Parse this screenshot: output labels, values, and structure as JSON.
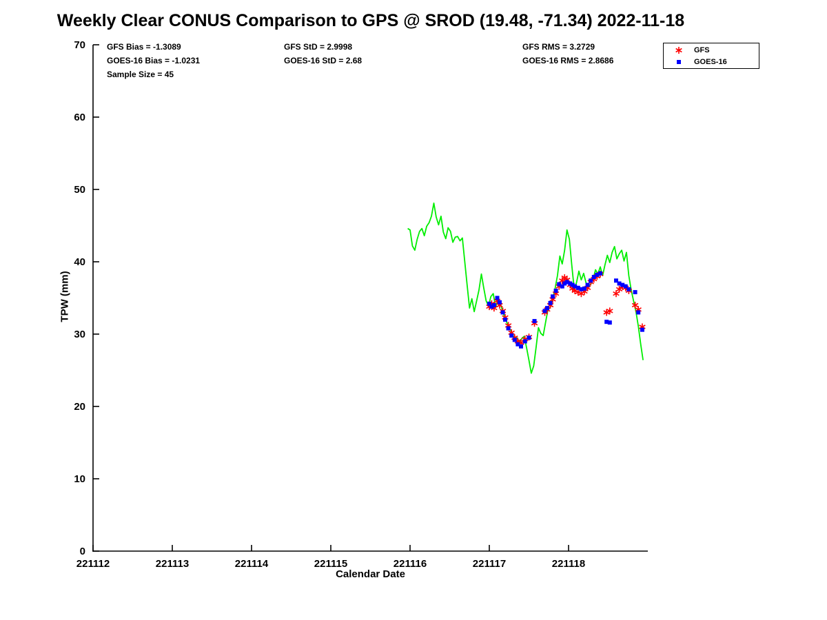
{
  "title": "Weekly Clear CONUS Comparison to GPS @ SROD (19.48, -71.34) 2022-11-18",
  "stats": {
    "gfs_bias": "GFS Bias = -1.3089",
    "goes_bias": "GOES-16 Bias = -1.0231",
    "sample_size": "Sample Size = 45",
    "gfs_std": "GFS StD = 2.9998",
    "goes_std": "GOES-16 StD = 2.68",
    "gfs_rms": "GFS RMS = 3.2729",
    "goes_rms": "GOES-16 RMS = 2.8686"
  },
  "legend": {
    "items": [
      {
        "label": "GFS",
        "marker": "asterisk",
        "color": "#ff0000"
      },
      {
        "label": "GOES-16",
        "marker": "square",
        "color": "#0000ff"
      }
    ]
  },
  "chart_data": {
    "type": "line+scatter",
    "title": "Weekly Clear CONUS Comparison to GPS @ SROD (19.48, -71.34) 2022-11-18",
    "xlabel": "Calendar Date",
    "ylabel": "TPW (mm)",
    "xlim": [
      221112,
      221119
    ],
    "ylim": [
      0,
      70
    ],
    "xticks": [
      221112,
      221113,
      221114,
      221115,
      221116,
      221117,
      221118
    ],
    "yticks": [
      0,
      10,
      20,
      30,
      40,
      50,
      60,
      70
    ],
    "grid": false,
    "legend_position": "top-right",
    "series": [
      {
        "name": "GPS",
        "type": "line",
        "color": "#00ee00",
        "points": [
          [
            221115.97,
            44.6
          ],
          [
            221116.0,
            44.4
          ],
          [
            221116.03,
            42.2
          ],
          [
            221116.06,
            41.6
          ],
          [
            221116.09,
            43.1
          ],
          [
            221116.12,
            44.2
          ],
          [
            221116.15,
            44.6
          ],
          [
            221116.18,
            43.6
          ],
          [
            221116.21,
            44.9
          ],
          [
            221116.24,
            45.4
          ],
          [
            221116.27,
            46.3
          ],
          [
            221116.3,
            48.1
          ],
          [
            221116.33,
            46.2
          ],
          [
            221116.36,
            45.1
          ],
          [
            221116.39,
            46.3
          ],
          [
            221116.42,
            44.1
          ],
          [
            221116.45,
            43.2
          ],
          [
            221116.48,
            44.7
          ],
          [
            221116.51,
            44.2
          ],
          [
            221116.54,
            42.7
          ],
          [
            221116.57,
            43.4
          ],
          [
            221116.6,
            43.5
          ],
          [
            221116.63,
            42.9
          ],
          [
            221116.66,
            43.3
          ],
          [
            221116.69,
            40.0
          ],
          [
            221116.72,
            36.8
          ],
          [
            221116.75,
            33.6
          ],
          [
            221116.78,
            34.9
          ],
          [
            221116.81,
            33.1
          ],
          [
            221116.84,
            34.6
          ],
          [
            221116.87,
            36.1
          ],
          [
            221116.9,
            38.3
          ],
          [
            221116.93,
            36.4
          ],
          [
            221116.96,
            34.6
          ],
          [
            221116.99,
            33.9
          ],
          [
            221117.02,
            35.2
          ],
          [
            221117.05,
            35.6
          ],
          [
            221117.08,
            33.7
          ],
          [
            221117.11,
            34.9
          ],
          [
            221117.14,
            34.2
          ],
          [
            221117.17,
            33.1
          ],
          [
            221117.2,
            32.1
          ],
          [
            221117.23,
            31.4
          ],
          [
            221117.26,
            30.7
          ],
          [
            221117.29,
            30.1
          ],
          [
            221117.32,
            29.3
          ],
          [
            221117.35,
            29.5
          ],
          [
            221117.38,
            28.9
          ],
          [
            221117.41,
            29.4
          ],
          [
            221117.44,
            29.7
          ],
          [
            221117.47,
            28.1
          ],
          [
            221117.5,
            26.4
          ],
          [
            221117.53,
            24.6
          ],
          [
            221117.56,
            25.6
          ],
          [
            221117.59,
            28.1
          ],
          [
            221117.62,
            30.9
          ],
          [
            221117.65,
            30.1
          ],
          [
            221117.68,
            29.8
          ],
          [
            221117.71,
            31.6
          ],
          [
            221117.74,
            33.4
          ],
          [
            221117.77,
            33.7
          ],
          [
            221117.8,
            34.9
          ],
          [
            221117.83,
            36.3
          ],
          [
            221117.86,
            38.1
          ],
          [
            221117.89,
            40.8
          ],
          [
            221117.92,
            39.7
          ],
          [
            221117.95,
            41.6
          ],
          [
            221117.98,
            44.4
          ],
          [
            221118.01,
            43.1
          ],
          [
            221118.04,
            39.6
          ],
          [
            221118.07,
            36.3
          ],
          [
            221118.1,
            37.1
          ],
          [
            221118.13,
            38.7
          ],
          [
            221118.16,
            37.5
          ],
          [
            221118.19,
            38.4
          ],
          [
            221118.22,
            37.1
          ],
          [
            221118.25,
            36.6
          ],
          [
            221118.28,
            36.9
          ],
          [
            221118.31,
            37.6
          ],
          [
            221118.34,
            38.9
          ],
          [
            221118.37,
            38.3
          ],
          [
            221118.4,
            39.3
          ],
          [
            221118.43,
            38.1
          ],
          [
            221118.46,
            39.6
          ],
          [
            221118.49,
            40.9
          ],
          [
            221118.52,
            39.9
          ],
          [
            221118.55,
            41.3
          ],
          [
            221118.58,
            42.1
          ],
          [
            221118.61,
            40.4
          ],
          [
            221118.64,
            41.1
          ],
          [
            221118.67,
            41.6
          ],
          [
            221118.7,
            40.1
          ],
          [
            221118.73,
            41.3
          ],
          [
            221118.76,
            38.1
          ],
          [
            221118.79,
            36.1
          ],
          [
            221118.82,
            34.6
          ],
          [
            221118.85,
            33.1
          ],
          [
            221118.88,
            31.1
          ],
          [
            221118.91,
            28.6
          ],
          [
            221118.94,
            26.4
          ]
        ]
      },
      {
        "name": "GFS",
        "type": "scatter",
        "marker": "asterisk",
        "color": "#ff0000",
        "points": [
          [
            221117.0,
            33.8
          ],
          [
            221117.03,
            34.2
          ],
          [
            221117.06,
            33.6
          ],
          [
            221117.1,
            34.6
          ],
          [
            221117.13,
            34.0
          ],
          [
            221117.17,
            33.2
          ],
          [
            221117.2,
            32.3
          ],
          [
            221117.24,
            31.2
          ],
          [
            221117.28,
            30.2
          ],
          [
            221117.32,
            29.5
          ],
          [
            221117.36,
            29.0
          ],
          [
            221117.4,
            28.8
          ],
          [
            221117.45,
            29.3
          ],
          [
            221117.5,
            29.6
          ],
          [
            221117.57,
            31.5
          ],
          [
            221117.7,
            33.0
          ],
          [
            221117.73,
            33.4
          ],
          [
            221117.77,
            34.0
          ],
          [
            221117.8,
            34.8
          ],
          [
            221117.84,
            35.6
          ],
          [
            221117.88,
            36.6
          ],
          [
            221117.92,
            37.4
          ],
          [
            221117.95,
            37.8
          ],
          [
            221117.98,
            37.5
          ],
          [
            221118.02,
            36.8
          ],
          [
            221118.05,
            36.3
          ],
          [
            221118.08,
            36.0
          ],
          [
            221118.12,
            35.8
          ],
          [
            221118.16,
            35.6
          ],
          [
            221118.2,
            35.9
          ],
          [
            221118.24,
            36.4
          ],
          [
            221118.28,
            37.2
          ],
          [
            221118.32,
            37.6
          ],
          [
            221118.36,
            38.0
          ],
          [
            221118.4,
            38.3
          ],
          [
            221118.48,
            33.0
          ],
          [
            221118.52,
            33.2
          ],
          [
            221118.6,
            35.6
          ],
          [
            221118.64,
            36.2
          ],
          [
            221118.68,
            36.6
          ],
          [
            221118.72,
            36.4
          ],
          [
            221118.76,
            36.0
          ],
          [
            221118.84,
            34.0
          ],
          [
            221118.88,
            33.4
          ],
          [
            221118.93,
            31.0
          ]
        ]
      },
      {
        "name": "GOES-16",
        "type": "scatter",
        "marker": "square",
        "color": "#0000ff",
        "points": [
          [
            221117.0,
            34.2
          ],
          [
            221117.03,
            33.8
          ],
          [
            221117.06,
            34.0
          ],
          [
            221117.1,
            35.0
          ],
          [
            221117.13,
            34.4
          ],
          [
            221117.17,
            33.0
          ],
          [
            221117.2,
            32.0
          ],
          [
            221117.24,
            30.8
          ],
          [
            221117.28,
            29.8
          ],
          [
            221117.32,
            29.2
          ],
          [
            221117.36,
            28.6
          ],
          [
            221117.4,
            28.3
          ],
          [
            221117.45,
            29.0
          ],
          [
            221117.5,
            29.5
          ],
          [
            221117.57,
            31.8
          ],
          [
            221117.7,
            33.2
          ],
          [
            221117.73,
            33.6
          ],
          [
            221117.77,
            34.3
          ],
          [
            221117.8,
            35.2
          ],
          [
            221117.84,
            36.0
          ],
          [
            221117.88,
            36.9
          ],
          [
            221117.92,
            36.6
          ],
          [
            221117.95,
            37.0
          ],
          [
            221117.98,
            37.2
          ],
          [
            221118.02,
            37.0
          ],
          [
            221118.05,
            36.8
          ],
          [
            221118.08,
            36.6
          ],
          [
            221118.12,
            36.4
          ],
          [
            221118.16,
            36.2
          ],
          [
            221118.2,
            36.3
          ],
          [
            221118.24,
            36.8
          ],
          [
            221118.28,
            37.4
          ],
          [
            221118.32,
            37.9
          ],
          [
            221118.36,
            38.2
          ],
          [
            221118.4,
            38.4
          ],
          [
            221118.48,
            31.7
          ],
          [
            221118.52,
            31.6
          ],
          [
            221118.6,
            37.4
          ],
          [
            221118.64,
            37.0
          ],
          [
            221118.68,
            36.8
          ],
          [
            221118.72,
            36.6
          ],
          [
            221118.76,
            36.2
          ],
          [
            221118.84,
            35.8
          ],
          [
            221118.88,
            33.0
          ],
          [
            221118.93,
            30.6
          ]
        ]
      }
    ]
  }
}
